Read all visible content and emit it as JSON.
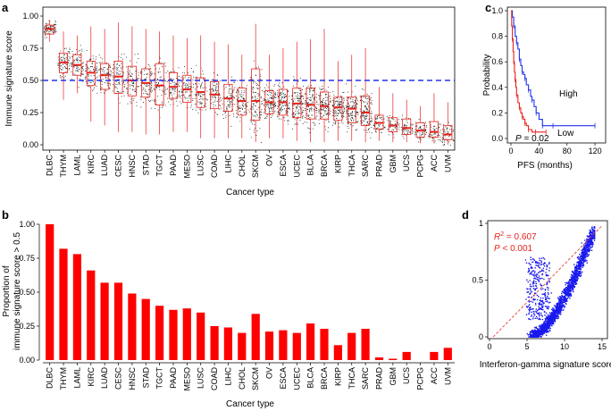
{
  "panels": {
    "a": {
      "label": "a"
    },
    "b": {
      "label": "b"
    },
    "c": {
      "label": "c"
    },
    "d": {
      "label": "d"
    }
  },
  "chart_data": [
    {
      "id": "a",
      "type": "box",
      "ylabel": "Immune signature score",
      "xlabel": "Cancer type",
      "ylim": [
        0,
        1.0
      ],
      "yticks": [
        "0.00",
        "0.25",
        "0.50",
        "0.75",
        "1.00"
      ],
      "threshold": 0.5,
      "colors": {
        "box": "#e8221c",
        "threshold": "#2233ee",
        "points": "#222222"
      },
      "categories": [
        "DLBC",
        "THYM",
        "LAML",
        "KIRC",
        "LUAD",
        "CESC",
        "HNSC",
        "STAD",
        "TGCT",
        "PAAD",
        "MESO",
        "LUSC",
        "COAD",
        "LIHC",
        "CHOL",
        "SKCM",
        "OV",
        "ESCA",
        "UCEC",
        "BLCA",
        "BRCA",
        "KIRP",
        "THCA",
        "SARC",
        "PRAD",
        "GBM",
        "UCS",
        "PCPG",
        "ACC",
        "UVM"
      ],
      "boxes": [
        {
          "q1": 0.86,
          "med": 0.9,
          "q3": 0.93,
          "lo": 0.8,
          "hi": 0.97
        },
        {
          "q1": 0.56,
          "med": 0.64,
          "q3": 0.71,
          "lo": 0.35,
          "hi": 0.88
        },
        {
          "q1": 0.54,
          "med": 0.62,
          "q3": 0.7,
          "lo": 0.4,
          "hi": 0.85
        },
        {
          "q1": 0.46,
          "med": 0.56,
          "q3": 0.65,
          "lo": 0.18,
          "hi": 0.92
        },
        {
          "q1": 0.43,
          "med": 0.54,
          "q3": 0.63,
          "lo": 0.15,
          "hi": 0.9
        },
        {
          "q1": 0.4,
          "med": 0.53,
          "q3": 0.65,
          "lo": 0.1,
          "hi": 0.95
        },
        {
          "q1": 0.38,
          "med": 0.5,
          "q3": 0.61,
          "lo": 0.1,
          "hi": 0.92
        },
        {
          "q1": 0.37,
          "med": 0.48,
          "q3": 0.59,
          "lo": 0.08,
          "hi": 0.9
        },
        {
          "q1": 0.31,
          "med": 0.46,
          "q3": 0.63,
          "lo": 0.08,
          "hi": 0.88
        },
        {
          "q1": 0.36,
          "med": 0.45,
          "q3": 0.56,
          "lo": 0.1,
          "hi": 0.85
        },
        {
          "q1": 0.33,
          "med": 0.43,
          "q3": 0.54,
          "lo": 0.1,
          "hi": 0.83
        },
        {
          "q1": 0.29,
          "med": 0.41,
          "q3": 0.52,
          "lo": 0.05,
          "hi": 0.85
        },
        {
          "q1": 0.28,
          "med": 0.39,
          "q3": 0.49,
          "lo": 0.05,
          "hi": 0.8
        },
        {
          "q1": 0.26,
          "med": 0.36,
          "q3": 0.47,
          "lo": 0.05,
          "hi": 0.78
        },
        {
          "q1": 0.23,
          "med": 0.34,
          "q3": 0.44,
          "lo": 0.05,
          "hi": 0.7
        },
        {
          "q1": 0.19,
          "med": 0.34,
          "q3": 0.59,
          "lo": 0.02,
          "hi": 0.94
        },
        {
          "q1": 0.24,
          "med": 0.33,
          "q3": 0.42,
          "lo": 0.05,
          "hi": 0.7
        },
        {
          "q1": 0.23,
          "med": 0.33,
          "q3": 0.43,
          "lo": 0.05,
          "hi": 0.75
        },
        {
          "q1": 0.21,
          "med": 0.32,
          "q3": 0.44,
          "lo": 0.03,
          "hi": 0.8
        },
        {
          "q1": 0.2,
          "med": 0.31,
          "q3": 0.44,
          "lo": 0.02,
          "hi": 0.82
        },
        {
          "q1": 0.2,
          "med": 0.3,
          "q3": 0.41,
          "lo": 0.02,
          "hi": 0.9
        },
        {
          "q1": 0.19,
          "med": 0.29,
          "q3": 0.37,
          "lo": 0.03,
          "hi": 0.65
        },
        {
          "q1": 0.17,
          "med": 0.28,
          "q3": 0.37,
          "lo": 0.03,
          "hi": 0.7
        },
        {
          "q1": 0.15,
          "med": 0.25,
          "q3": 0.38,
          "lo": 0.02,
          "hi": 0.75
        },
        {
          "q1": 0.12,
          "med": 0.17,
          "q3": 0.23,
          "lo": 0.03,
          "hi": 0.45
        },
        {
          "q1": 0.1,
          "med": 0.15,
          "q3": 0.21,
          "lo": 0.02,
          "hi": 0.4
        },
        {
          "q1": 0.08,
          "med": 0.13,
          "q3": 0.2,
          "lo": 0.02,
          "hi": 0.35
        },
        {
          "q1": 0.06,
          "med": 0.11,
          "q3": 0.17,
          "lo": 0.01,
          "hi": 0.3
        },
        {
          "q1": 0.06,
          "med": 0.1,
          "q3": 0.18,
          "lo": 0.01,
          "hi": 0.4
        },
        {
          "q1": 0.04,
          "med": 0.08,
          "q3": 0.15,
          "lo": 0.0,
          "hi": 0.33
        }
      ]
    },
    {
      "id": "b",
      "type": "bar",
      "ylabel": "Proportion of",
      "ylabel2": "immune signature score > 0.5",
      "xlabel": "Cancer type",
      "ylim": [
        0,
        1.0
      ],
      "yticks": [
        "0.00",
        "0.25",
        "0.50",
        "0.75",
        "1.00"
      ],
      "color": "#ff0000",
      "categories": [
        "DLBC",
        "THYM",
        "LAML",
        "KIRC",
        "LUAD",
        "CESC",
        "HNSC",
        "STAD",
        "TGCT",
        "PAAD",
        "MESO",
        "LUSC",
        "COAD",
        "LIHC",
        "CHOL",
        "SKCM",
        "OV",
        "ESCA",
        "UCEC",
        "BLCA",
        "BRCA",
        "KIRP",
        "THCA",
        "SARC",
        "PRAD",
        "GBM",
        "UCS",
        "PCPG",
        "ACC",
        "UVM"
      ],
      "values": [
        1.0,
        0.82,
        0.78,
        0.66,
        0.57,
        0.57,
        0.49,
        0.45,
        0.4,
        0.37,
        0.38,
        0.35,
        0.25,
        0.24,
        0.2,
        0.34,
        0.21,
        0.22,
        0.2,
        0.27,
        0.23,
        0.11,
        0.2,
        0.23,
        0.02,
        0.01,
        0.06,
        0.0,
        0.06,
        0.09
      ]
    },
    {
      "id": "c",
      "type": "line",
      "ylabel": "Probability",
      "xlabel": "PFS (months)",
      "xlim": [
        0,
        125
      ],
      "ylim": [
        0,
        1.0
      ],
      "xticks": [
        "0",
        "40",
        "80",
        "120"
      ],
      "yticks": [
        "0.0",
        "0.2",
        "0.4",
        "0.6",
        "0.8",
        "1.0"
      ],
      "pvalue_label": "P",
      "pvalue_text": " = 0.02",
      "series": [
        {
          "name": "High",
          "color": "#2233ee",
          "x": [
            0,
            2,
            4,
            6,
            8,
            10,
            12,
            14,
            16,
            18,
            20,
            22,
            25,
            28,
            30,
            33,
            36,
            40,
            45,
            50,
            60,
            70,
            120
          ],
          "y": [
            1.0,
            0.95,
            0.88,
            0.8,
            0.75,
            0.7,
            0.62,
            0.57,
            0.52,
            0.5,
            0.47,
            0.42,
            0.38,
            0.33,
            0.3,
            0.25,
            0.2,
            0.15,
            0.1,
            0.1,
            0.1,
            0.1,
            0.1
          ]
        },
        {
          "name": "Low",
          "color": "#e8221c",
          "x": [
            0,
            1,
            2,
            3,
            4,
            5,
            6,
            7,
            8,
            10,
            12,
            14,
            16,
            18,
            20,
            22,
            25,
            30,
            35,
            40,
            50
          ],
          "y": [
            1.0,
            0.88,
            0.78,
            0.68,
            0.6,
            0.52,
            0.46,
            0.4,
            0.34,
            0.28,
            0.24,
            0.2,
            0.17,
            0.15,
            0.12,
            0.1,
            0.07,
            0.05,
            0.05,
            0.05,
            0.05
          ]
        }
      ]
    },
    {
      "id": "d",
      "type": "scatter",
      "xlabel": "Interferon-gamma signature score",
      "xlim": [
        0,
        15
      ],
      "ylim": [
        0,
        1.0
      ],
      "xticks": [
        "0",
        "5",
        "10",
        "15"
      ],
      "yticks": [
        "0",
        "0.5",
        "1"
      ],
      "r2_label": "R",
      "r2_text": " = 0.607",
      "p_label": "P",
      "p_text": " < 0.001",
      "colors": {
        "points": "#1a1aee",
        "fit": "#e8221c"
      }
    }
  ]
}
